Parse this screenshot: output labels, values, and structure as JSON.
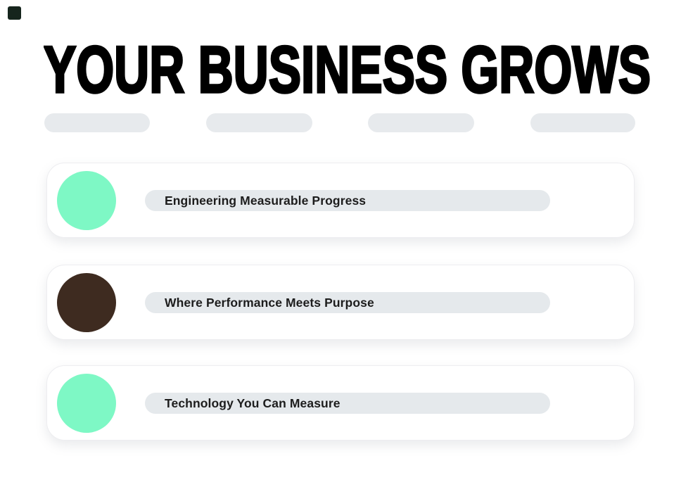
{
  "page": {
    "background_color": "#ffffff"
  },
  "brand_mark": {
    "color": "#16251D"
  },
  "header": {
    "title": "YOUR BUSINESS GROWS",
    "text_color": "#000000"
  },
  "nav_placeholders": {
    "count": 4,
    "pill_color": "#E7EAED"
  },
  "card_style": {
    "pill_color": "#E5E9EC",
    "label_color": "#1D1D1D",
    "card_background": "#ffffff",
    "mint_accent": "#7EF8C5",
    "brown_accent": "#3E2B20"
  },
  "cards": [
    {
      "label": "Engineering Measurable Progress",
      "dot_color": "#7EF8C5"
    },
    {
      "label": "Where Performance Meets Purpose",
      "dot_color": "#3E2B20"
    },
    {
      "label": "Technology You Can Measure",
      "dot_color": "#7EF8C5"
    }
  ]
}
